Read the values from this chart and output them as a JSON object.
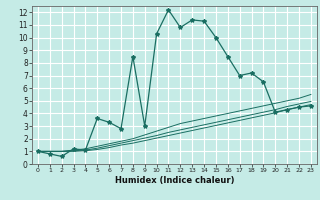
{
  "xlabel": "Humidex (Indice chaleur)",
  "xlim": [
    -0.5,
    23.5
  ],
  "ylim": [
    0,
    12.5
  ],
  "xticks": [
    0,
    1,
    2,
    3,
    4,
    5,
    6,
    7,
    8,
    9,
    10,
    11,
    12,
    13,
    14,
    15,
    16,
    17,
    18,
    19,
    20,
    21,
    22,
    23
  ],
  "yticks": [
    0,
    1,
    2,
    3,
    4,
    5,
    6,
    7,
    8,
    9,
    10,
    11,
    12
  ],
  "bg_color": "#c5ebe6",
  "grid_color": "#ffffff",
  "line_color": "#1a6e62",
  "line1_x": [
    0,
    1,
    2,
    3,
    4,
    5,
    6,
    7,
    8,
    9,
    10,
    11,
    12,
    13,
    14,
    15,
    16,
    17,
    18,
    19,
    20,
    21,
    22,
    23
  ],
  "line1_y": [
    1.0,
    0.8,
    0.6,
    1.2,
    1.1,
    3.6,
    3.3,
    2.8,
    8.5,
    3.0,
    10.3,
    12.2,
    10.8,
    11.4,
    11.3,
    10.0,
    8.5,
    7.0,
    7.2,
    6.5,
    4.1,
    4.3,
    4.5,
    4.6
  ],
  "line2_x": [
    0,
    1,
    2,
    3,
    4,
    5,
    6,
    7,
    8,
    9,
    10,
    11,
    12,
    13,
    14,
    15,
    16,
    17,
    18,
    19,
    20,
    21,
    22,
    23
  ],
  "line2_y": [
    1.0,
    1.0,
    1.0,
    1.1,
    1.2,
    1.4,
    1.6,
    1.8,
    2.0,
    2.3,
    2.6,
    2.9,
    3.2,
    3.4,
    3.6,
    3.8,
    4.0,
    4.2,
    4.4,
    4.6,
    4.8,
    5.0,
    5.2,
    5.5
  ],
  "line3_x": [
    0,
    1,
    2,
    3,
    4,
    5,
    6,
    7,
    8,
    9,
    10,
    11,
    12,
    13,
    14,
    15,
    16,
    17,
    18,
    19,
    20,
    21,
    22,
    23
  ],
  "line3_y": [
    1.0,
    1.0,
    1.0,
    1.05,
    1.1,
    1.25,
    1.45,
    1.65,
    1.85,
    2.05,
    2.25,
    2.5,
    2.7,
    2.9,
    3.1,
    3.3,
    3.5,
    3.7,
    3.9,
    4.1,
    4.3,
    4.55,
    4.75,
    4.95
  ],
  "line4_x": [
    0,
    1,
    2,
    3,
    4,
    5,
    6,
    7,
    8,
    9,
    10,
    11,
    12,
    13,
    14,
    15,
    16,
    17,
    18,
    19,
    20,
    21,
    22,
    23
  ],
  "line4_y": [
    1.0,
    1.0,
    1.0,
    1.0,
    1.05,
    1.15,
    1.3,
    1.5,
    1.65,
    1.85,
    2.05,
    2.25,
    2.45,
    2.65,
    2.85,
    3.05,
    3.25,
    3.45,
    3.65,
    3.85,
    4.05,
    4.3,
    4.5,
    4.7
  ]
}
